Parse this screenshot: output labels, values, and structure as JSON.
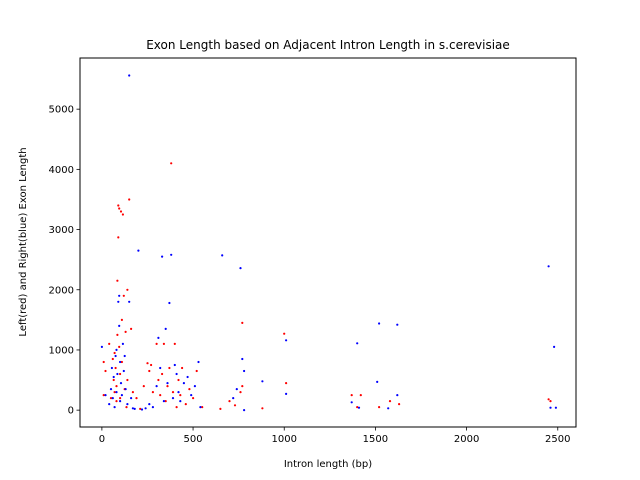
{
  "chart_data": {
    "type": "scatter",
    "title": "Exon Length based on Adjacent Intron Length in s.cerevisiae",
    "xlabel": "Intron length (bp)",
    "ylabel": "Left(red) and Right(blue) Exon Length",
    "xlim": [
      -120,
      2600
    ],
    "ylim": [
      -280,
      5850
    ],
    "xticks": [
      0,
      500,
      1000,
      1500,
      2000,
      2500
    ],
    "yticks": [
      0,
      1000,
      2000,
      3000,
      4000,
      5000
    ],
    "grid": false,
    "legend": "none",
    "colors": {
      "left": "#ff0000",
      "right": "#0000ff"
    },
    "series": [
      {
        "color": "#ff0000",
        "points": [
          [
            10,
            800
          ],
          [
            10,
            250
          ],
          [
            20,
            650
          ],
          [
            40,
            1100
          ],
          [
            50,
            200
          ],
          [
            60,
            850
          ],
          [
            65,
            500
          ],
          [
            70,
            300
          ],
          [
            70,
            950
          ],
          [
            75,
            700
          ],
          [
            80,
            150
          ],
          [
            80,
            400
          ],
          [
            85,
            1250
          ],
          [
            85,
            2150
          ],
          [
            90,
            2870
          ],
          [
            90,
            3400
          ],
          [
            95,
            3350
          ],
          [
            95,
            1050
          ],
          [
            100,
            600
          ],
          [
            100,
            200
          ],
          [
            105,
            3300
          ],
          [
            110,
            1500
          ],
          [
            110,
            800
          ],
          [
            115,
            3250
          ],
          [
            120,
            1900
          ],
          [
            125,
            350
          ],
          [
            130,
            1300
          ],
          [
            135,
            50
          ],
          [
            140,
            2000
          ],
          [
            140,
            500
          ],
          [
            150,
            3500
          ],
          [
            160,
            1350
          ],
          [
            170,
            300
          ],
          [
            190,
            200
          ],
          [
            210,
            20
          ],
          [
            230,
            400
          ],
          [
            250,
            780
          ],
          [
            260,
            650
          ],
          [
            270,
            750
          ],
          [
            280,
            300
          ],
          [
            300,
            1100
          ],
          [
            310,
            500
          ],
          [
            320,
            250
          ],
          [
            330,
            600
          ],
          [
            340,
            1100
          ],
          [
            350,
            150
          ],
          [
            360,
            400
          ],
          [
            370,
            700
          ],
          [
            380,
            4100
          ],
          [
            390,
            300
          ],
          [
            400,
            1100
          ],
          [
            410,
            50
          ],
          [
            420,
            500
          ],
          [
            430,
            250
          ],
          [
            440,
            700
          ],
          [
            460,
            100
          ],
          [
            480,
            350
          ],
          [
            500,
            200
          ],
          [
            520,
            650
          ],
          [
            550,
            50
          ],
          [
            650,
            20
          ],
          [
            700,
            150
          ],
          [
            730,
            80
          ],
          [
            760,
            300
          ],
          [
            770,
            1450
          ],
          [
            770,
            400
          ],
          [
            880,
            30
          ],
          [
            1000,
            1270
          ],
          [
            1010,
            450
          ],
          [
            1370,
            250
          ],
          [
            1400,
            50
          ],
          [
            1420,
            250
          ],
          [
            1520,
            50
          ],
          [
            1580,
            150
          ],
          [
            1630,
            100
          ],
          [
            2450,
            180
          ],
          [
            2460,
            150
          ]
        ]
      },
      {
        "color": "#0000ff",
        "points": [
          [
            0,
            1050
          ],
          [
            20,
            250
          ],
          [
            40,
            100
          ],
          [
            50,
            350
          ],
          [
            55,
            700
          ],
          [
            60,
            200
          ],
          [
            65,
            550
          ],
          [
            70,
            50
          ],
          [
            75,
            900
          ],
          [
            80,
            300
          ],
          [
            80,
            1000
          ],
          [
            85,
            600
          ],
          [
            90,
            1800
          ],
          [
            95,
            1900
          ],
          [
            95,
            1400
          ],
          [
            100,
            150
          ],
          [
            100,
            800
          ],
          [
            105,
            450
          ],
          [
            110,
            250
          ],
          [
            115,
            1100
          ],
          [
            120,
            650
          ],
          [
            125,
            900
          ],
          [
            130,
            350
          ],
          [
            140,
            100
          ],
          [
            150,
            5560
          ],
          [
            150,
            1800
          ],
          [
            160,
            200
          ],
          [
            170,
            30
          ],
          [
            180,
            20
          ],
          [
            200,
            2650
          ],
          [
            220,
            10
          ],
          [
            240,
            30
          ],
          [
            260,
            100
          ],
          [
            280,
            50
          ],
          [
            300,
            400
          ],
          [
            310,
            1200
          ],
          [
            320,
            700
          ],
          [
            330,
            2550
          ],
          [
            340,
            150
          ],
          [
            350,
            1350
          ],
          [
            360,
            450
          ],
          [
            370,
            1780
          ],
          [
            380,
            2580
          ],
          [
            390,
            200
          ],
          [
            400,
            750
          ],
          [
            410,
            600
          ],
          [
            420,
            300
          ],
          [
            430,
            150
          ],
          [
            450,
            450
          ],
          [
            470,
            550
          ],
          [
            490,
            250
          ],
          [
            510,
            400
          ],
          [
            530,
            800
          ],
          [
            540,
            50
          ],
          [
            660,
            2570
          ],
          [
            720,
            200
          ],
          [
            740,
            350
          ],
          [
            760,
            2360
          ],
          [
            770,
            850
          ],
          [
            780,
            0
          ],
          [
            780,
            650
          ],
          [
            880,
            480
          ],
          [
            1010,
            1160
          ],
          [
            1010,
            270
          ],
          [
            1370,
            130
          ],
          [
            1400,
            1110
          ],
          [
            1410,
            40
          ],
          [
            1510,
            470
          ],
          [
            1520,
            1440
          ],
          [
            1570,
            30
          ],
          [
            1620,
            1420
          ],
          [
            1620,
            250
          ],
          [
            2450,
            2390
          ],
          [
            2460,
            40
          ],
          [
            2490,
            40
          ],
          [
            2480,
            1050
          ]
        ]
      }
    ]
  }
}
